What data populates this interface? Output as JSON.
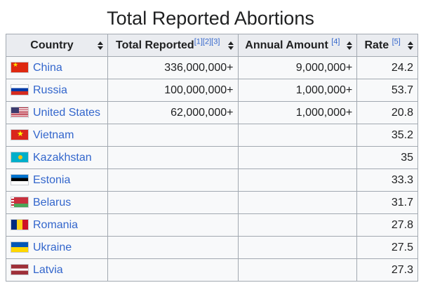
{
  "title": "Total Reported Abortions",
  "table": {
    "headers": {
      "country": "Country",
      "total": "Total Reported",
      "total_refs": [
        "[1]",
        "[2]",
        "[3]"
      ],
      "annual": "Annual Amount",
      "annual_ref": "[4]",
      "rate": "Rate",
      "rate_ref": "[5]"
    },
    "rows": [
      {
        "country": "China",
        "flag": "china-flag-icon",
        "total": "336,000,000+",
        "annual": "9,000,000+",
        "rate": "24.2"
      },
      {
        "country": "Russia",
        "flag": "russia-flag-icon",
        "total": "100,000,000+",
        "annual": "1,000,000+",
        "rate": "53.7"
      },
      {
        "country": "United States",
        "flag": "united-states-flag-icon",
        "total": "62,000,000+",
        "annual": "1,000,000+",
        "rate": "20.8"
      },
      {
        "country": "Vietnam",
        "flag": "vietnam-flag-icon",
        "total": "",
        "annual": "",
        "rate": "35.2"
      },
      {
        "country": "Kazakhstan",
        "flag": "kazakhstan-flag-icon",
        "total": "",
        "annual": "",
        "rate": "35"
      },
      {
        "country": "Estonia",
        "flag": "estonia-flag-icon",
        "total": "",
        "annual": "",
        "rate": "33.3"
      },
      {
        "country": "Belarus",
        "flag": "belarus-flag-icon",
        "total": "",
        "annual": "",
        "rate": "31.7"
      },
      {
        "country": "Romania",
        "flag": "romania-flag-icon",
        "total": "",
        "annual": "",
        "rate": "27.8"
      },
      {
        "country": "Ukraine",
        "flag": "ukraine-flag-icon",
        "total": "",
        "annual": "",
        "rate": "27.5"
      },
      {
        "country": "Latvia",
        "flag": "latvia-flag-icon",
        "total": "",
        "annual": "",
        "rate": "27.3"
      }
    ]
  },
  "colors": {
    "link": "#3366cc",
    "header_bg": "#eaecf0",
    "cell_bg": "#f8f9fa",
    "border": "#a2a9b1"
  }
}
